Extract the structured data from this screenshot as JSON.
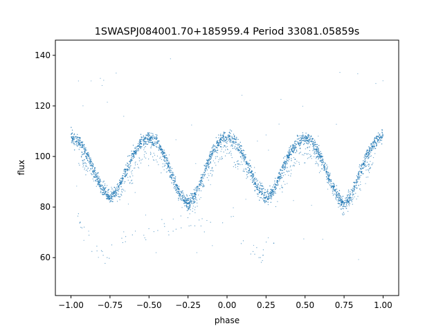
{
  "chart_data": {
    "type": "scatter",
    "title": "1SWASPJ084001.70+185959.4 Period 33081.05859s",
    "xlabel": "phase",
    "ylabel": "flux",
    "xlim": [
      -1.1,
      1.1
    ],
    "ylim": [
      45,
      146
    ],
    "xticks": [
      -1.0,
      -0.75,
      -0.5,
      -0.25,
      0.0,
      0.25,
      0.5,
      0.75,
      1.0
    ],
    "xtick_labels": [
      "−1.00",
      "−0.75",
      "−0.50",
      "−0.25",
      "0.00",
      "0.25",
      "0.50",
      "0.75",
      "1.00"
    ],
    "yticks": [
      60,
      80,
      100,
      120,
      140
    ],
    "ytick_labels": [
      "60",
      "80",
      "100",
      "120",
      "140"
    ],
    "grid": false,
    "legend": "none",
    "point_color": "#1f77b4",
    "series": [
      {
        "description": "main light-curve envelope (dense band, repeated twice over phase -1..1)",
        "x": [
          -1.0,
          -0.95,
          -0.9,
          -0.85,
          -0.8,
          -0.75,
          -0.7,
          -0.65,
          -0.6,
          -0.55,
          -0.5,
          -0.45,
          -0.4,
          -0.35,
          -0.3,
          -0.25,
          -0.2,
          -0.15,
          -0.1,
          -0.05,
          0.0,
          0.05,
          0.1,
          0.15,
          0.2,
          0.25,
          0.3,
          0.35,
          0.4,
          0.45,
          0.5,
          0.55,
          0.6,
          0.65,
          0.7,
          0.75,
          0.8,
          0.85,
          0.9,
          0.95,
          1.0
        ],
        "y": [
          108,
          106,
          101,
          94,
          87,
          83.5,
          87,
          94,
          101,
          105.5,
          107,
          105.5,
          100,
          92,
          85,
          81,
          85,
          93,
          101,
          106,
          108,
          106,
          101,
          94,
          87,
          83.5,
          87,
          94,
          101,
          105.5,
          107,
          105.5,
          100,
          92,
          85,
          81,
          85,
          93,
          101,
          106,
          108
        ]
      },
      {
        "description": "fainter secondary branch below the main band",
        "x": [
          -0.95,
          -0.9,
          -0.85,
          -0.8,
          -0.75,
          -0.7,
          -0.65,
          -0.6,
          -0.55,
          -0.5,
          -0.45,
          -0.4,
          -0.35,
          -0.3,
          -0.25,
          -0.2,
          -0.15,
          -0.1,
          -0.05,
          0.0,
          0.05,
          0.1,
          0.15,
          0.2,
          0.25,
          0.3,
          0.35,
          0.4,
          0.45,
          0.5,
          0.55,
          0.6,
          0.65,
          0.7,
          0.75,
          0.8,
          0.85,
          0.9,
          0.95
        ],
        "y": [
          98,
          96,
          92,
          88,
          85,
          84,
          88,
          94,
          99,
          101,
          100,
          96,
          90,
          84,
          80,
          82,
          88,
          95,
          100,
          103,
          98,
          96,
          92,
          88,
          85,
          84,
          88,
          94,
          99,
          101,
          100,
          96,
          90,
          84,
          80,
          82,
          88,
          95,
          100
        ]
      },
      {
        "description": "low-flux excursion points",
        "x": [
          -0.96,
          -0.94,
          -0.92,
          -0.9,
          -0.88,
          -0.85,
          -0.8,
          -0.78,
          -0.74,
          -0.7,
          -0.66,
          0.04,
          0.06,
          0.08,
          0.1,
          0.12,
          0.15,
          0.2,
          0.22,
          0.26,
          0.3,
          0.34
        ],
        "y": [
          77,
          73,
          70,
          68,
          66,
          64,
          62,
          60,
          63,
          66,
          68,
          77,
          73,
          70,
          68,
          66,
          64,
          62,
          60,
          63,
          66,
          68
        ]
      }
    ]
  }
}
